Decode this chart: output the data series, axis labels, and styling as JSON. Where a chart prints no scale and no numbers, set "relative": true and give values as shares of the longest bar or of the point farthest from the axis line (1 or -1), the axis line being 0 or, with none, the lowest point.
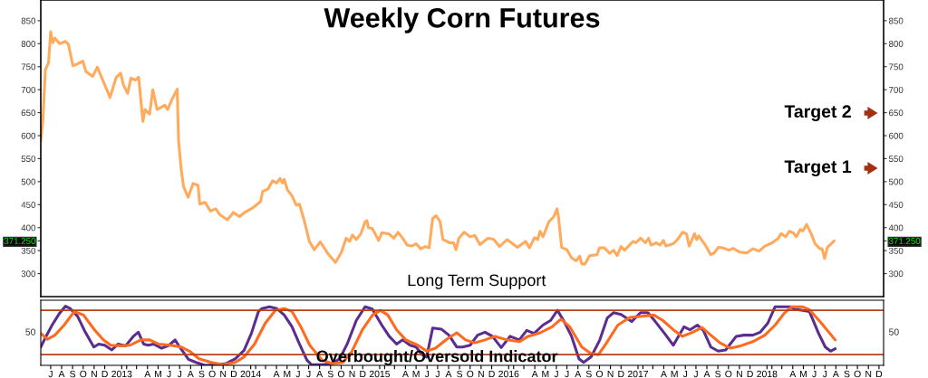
{
  "chart_data": [
    {
      "type": "line",
      "title": "Weekly Corn Futures",
      "xlim": [
        "2012-06-17",
        "2018-12-28"
      ],
      "ylim": [
        250,
        895
      ],
      "yticks": [
        300,
        350,
        {
          "value": 371.25,
          "label": "371.250"
        },
        400,
        450,
        500,
        550,
        600,
        650,
        700,
        750,
        800,
        850
      ],
      "y2lim": [
        250,
        895
      ],
      "y2ticks": [
        300,
        350,
        {
          "value": 371.25,
          "label": "371.250"
        },
        400,
        450,
        500,
        550,
        600,
        650,
        700,
        750,
        800,
        850
      ],
      "tick_labels": "y",
      "annotations": [
        "Long Term Support",
        "Target 2",
        "Target 1"
      ],
      "series": [
        {
          "color": "#ffaa5c",
          "x": [
            "2012-06-17",
            "2012-06-23",
            "2012-06-30",
            "2012-07-09",
            "2012-07-15",
            "2012-07-21",
            "2012-07-27",
            "2012-08-09",
            "2012-08-26",
            "2012-09-03",
            "2012-09-16",
            "2012-09-29",
            "2012-10-14",
            "2012-10-23",
            "2012-11-11",
            "2012-11-24",
            "2012-12-19",
            "2012-12-30",
            "2013-01-16",
            "2013-01-29",
            "2013-02-06",
            "2013-02-18",
            "2013-02-27",
            "2013-03-12",
            "2013-03-21",
            "2013-04-02",
            "2013-04-08",
            "2013-04-21",
            "2013-04-30",
            "2013-05-12",
            "2013-06-03",
            "2013-06-11",
            "2013-06-24",
            "2013-07-08",
            "2013-07-12",
            "2013-07-19",
            "2013-07-26",
            "2013-08-08",
            "2013-08-22",
            "2013-09-05",
            "2013-09-10",
            "2013-09-25",
            "2013-10-10",
            "2013-10-25",
            "2013-11-06",
            "2013-11-27",
            "2013-12-14",
            "2013-12-31",
            "2014-01-13",
            "2014-02-07",
            "2014-03-01",
            "2014-03-07",
            "2014-03-22",
            "2014-04-04",
            "2014-04-15",
            "2014-04-25",
            "2014-05-02",
            "2014-05-07",
            "2014-05-16",
            "2014-05-29",
            "2014-06-10",
            "2014-06-19",
            "2014-07-02",
            "2014-07-17",
            "2014-07-31",
            "2014-08-17",
            "2014-09-07",
            "2014-09-29",
            "2014-10-16",
            "2014-10-29",
            "2014-11-08",
            "2014-11-16",
            "2014-11-27",
            "2014-12-10",
            "2014-12-22",
            "2014-12-27",
            "2014-12-31",
            "2015-01-11",
            "2015-01-19",
            "2015-01-29",
            "2015-02-07",
            "2015-02-28",
            "2015-03-13",
            "2015-03-25",
            "2015-04-07",
            "2015-04-20",
            "2015-05-03",
            "2015-05-15",
            "2015-05-28",
            "2015-06-10",
            "2015-06-21",
            "2015-07-01",
            "2015-07-11",
            "2015-07-22",
            "2015-07-30",
            "2015-08-19",
            "2015-08-29",
            "2015-09-05",
            "2015-09-13",
            "2015-09-28",
            "2015-10-15",
            "2015-10-28",
            "2015-11-12",
            "2015-12-04",
            "2015-12-20",
            "2016-01-06",
            "2016-01-28",
            "2016-02-14",
            "2016-02-26",
            "2016-03-20",
            "2016-03-31",
            "2016-04-14",
            "2016-04-23",
            "2016-04-30",
            "2016-05-08",
            "2016-05-25",
            "2016-06-07",
            "2016-06-17",
            "2016-06-21",
            "2016-06-30",
            "2016-07-15",
            "2016-07-28",
            "2016-08-10",
            "2016-08-20",
            "2016-08-26",
            "2016-09-04",
            "2016-09-17",
            "2016-10-08",
            "2016-10-15",
            "2016-10-29",
            "2016-11-13",
            "2016-11-24",
            "2016-12-04",
            "2016-12-15",
            "2016-12-25",
            "2017-01-18",
            "2017-01-26",
            "2017-02-08",
            "2017-02-22",
            "2017-03-03",
            "2017-03-10",
            "2017-03-25",
            "2017-04-04",
            "2017-04-14",
            "2017-04-21",
            "2017-05-12",
            "2017-05-25",
            "2017-06-07",
            "2017-06-18",
            "2017-06-26",
            "2017-07-11",
            "2017-07-17",
            "2017-07-23",
            "2017-08-09",
            "2017-08-26",
            "2017-09-05",
            "2017-09-16",
            "2017-09-29",
            "2017-10-17",
            "2017-10-28",
            "2017-11-15",
            "2017-12-06",
            "2017-12-23",
            "2018-01-10",
            "2018-01-26",
            "2018-02-16",
            "2018-03-05",
            "2018-03-13",
            "2018-03-26",
            "2018-04-05",
            "2018-04-16",
            "2018-04-25",
            "2018-05-06",
            "2018-05-14",
            "2018-05-24",
            "2018-06-06",
            "2018-06-17",
            "2018-07-01",
            "2018-07-07",
            "2018-07-14",
            "2018-07-22",
            "2018-08-10"
          ],
          "values": [
            588,
            634,
            743,
            759,
            826,
            802,
            812,
            800,
            805,
            799,
            752,
            756,
            762,
            739,
            729,
            749,
            703,
            683,
            726,
            736,
            710,
            692,
            725,
            721,
            727,
            631,
            657,
            647,
            700,
            657,
            666,
            657,
            680,
            701,
            588,
            529,
            489,
            466,
            496,
            492,
            451,
            455,
            436,
            441,
            428,
            417,
            433,
            424,
            432,
            443,
            457,
            479,
            484,
            502,
            497,
            507,
            497,
            505,
            482,
            469,
            449,
            451,
            417,
            370,
            352,
            369,
            344,
            324,
            347,
            377,
            370,
            384,
            374,
            387,
            413,
            415,
            400,
            398,
            387,
            372,
            389,
            386,
            377,
            390,
            377,
            362,
            360,
            365,
            354,
            359,
            356,
            420,
            426,
            413,
            374,
            367,
            367,
            352,
            377,
            390,
            380,
            383,
            363,
            377,
            375,
            359,
            374,
            364,
            357,
            370,
            356,
            378,
            374,
            392,
            380,
            413,
            423,
            441,
            423,
            357,
            352,
            334,
            328,
            338,
            321,
            321,
            339,
            341,
            356,
            356,
            344,
            351,
            339,
            359,
            351,
            370,
            367,
            377,
            367,
            377,
            362,
            367,
            362,
            372,
            360,
            365,
            375,
            390,
            387,
            360,
            387,
            374,
            382,
            364,
            341,
            345,
            357,
            356,
            351,
            355,
            347,
            345,
            354,
            349,
            360,
            367,
            377,
            387,
            380,
            392,
            389,
            380,
            396,
            393,
            407,
            387,
            365,
            354,
            354,
            333,
            357,
            371.25
          ]
        }
      ]
    },
    {
      "type": "line",
      "title": "Overbought/Oversold Indicator",
      "xlim": [
        "2012-06-17",
        "2018-12-28"
      ],
      "relative": true,
      "annotations": [
        "50",
        "50"
      ],
      "xticks": [
        {
          "value": "2012-07-15",
          "label": "J"
        },
        {
          "value": "2012-08-15",
          "label": "A"
        },
        {
          "value": "2012-09-15",
          "label": "S"
        },
        {
          "value": "2012-10-15",
          "label": "O"
        },
        {
          "value": "2012-11-15",
          "label": "N"
        },
        {
          "value": "2012-12-15",
          "label": "D"
        },
        {
          "value": "2013-02-01",
          "label": "2013"
        },
        {
          "value": "2013-02-15",
          "label": null
        },
        {
          "value": "2013-03-15",
          "label": null
        },
        {
          "value": "2013-04-15",
          "label": "A"
        },
        {
          "value": "2013-05-15",
          "label": "M"
        },
        {
          "value": "2013-06-15",
          "label": "J"
        },
        {
          "value": "2013-07-15",
          "label": "J"
        },
        {
          "value": "2013-08-15",
          "label": "A"
        },
        {
          "value": "2013-09-15",
          "label": "S"
        },
        {
          "value": "2013-10-15",
          "label": "O"
        },
        {
          "value": "2013-11-15",
          "label": "N"
        },
        {
          "value": "2013-12-15",
          "label": "D"
        },
        {
          "value": "2014-02-01",
          "label": "2014"
        },
        {
          "value": "2014-02-15",
          "label": null
        },
        {
          "value": "2014-03-15",
          "label": null
        },
        {
          "value": "2014-04-15",
          "label": "A"
        },
        {
          "value": "2014-05-15",
          "label": "M"
        },
        {
          "value": "2014-06-15",
          "label": "J"
        },
        {
          "value": "2014-07-15",
          "label": "J"
        },
        {
          "value": "2014-08-15",
          "label": "A"
        },
        {
          "value": "2014-09-15",
          "label": "S"
        },
        {
          "value": "2014-10-15",
          "label": "O"
        },
        {
          "value": "2014-11-15",
          "label": "N"
        },
        {
          "value": "2014-12-15",
          "label": "D"
        },
        {
          "value": "2015-02-01",
          "label": "2015"
        },
        {
          "value": "2015-02-15",
          "label": null
        },
        {
          "value": "2015-03-15",
          "label": null
        },
        {
          "value": "2015-04-15",
          "label": "A"
        },
        {
          "value": "2015-05-15",
          "label": "M"
        },
        {
          "value": "2015-06-15",
          "label": "J"
        },
        {
          "value": "2015-07-15",
          "label": "J"
        },
        {
          "value": "2015-08-15",
          "label": "A"
        },
        {
          "value": "2015-09-15",
          "label": "S"
        },
        {
          "value": "2015-10-15",
          "label": "O"
        },
        {
          "value": "2015-11-15",
          "label": "N"
        },
        {
          "value": "2015-12-15",
          "label": "D"
        },
        {
          "value": "2016-02-01",
          "label": "2016"
        },
        {
          "value": "2016-02-15",
          "label": null
        },
        {
          "value": "2016-03-15",
          "label": null
        },
        {
          "value": "2016-04-15",
          "label": "A"
        },
        {
          "value": "2016-05-15",
          "label": "M"
        },
        {
          "value": "2016-06-15",
          "label": "J"
        },
        {
          "value": "2016-07-15",
          "label": "J"
        },
        {
          "value": "2016-08-15",
          "label": "A"
        },
        {
          "value": "2016-09-15",
          "label": "S"
        },
        {
          "value": "2016-10-15",
          "label": "O"
        },
        {
          "value": "2016-11-15",
          "label": "N"
        },
        {
          "value": "2016-12-15",
          "label": "D"
        },
        {
          "value": "2017-02-01",
          "label": "2017"
        },
        {
          "value": "2017-02-15",
          "label": null
        },
        {
          "value": "2017-03-15",
          "label": null
        },
        {
          "value": "2017-04-15",
          "label": "A"
        },
        {
          "value": "2017-05-15",
          "label": "M"
        },
        {
          "value": "2017-06-15",
          "label": "J"
        },
        {
          "value": "2017-07-15",
          "label": "J"
        },
        {
          "value": "2017-08-15",
          "label": "A"
        },
        {
          "value": "2017-09-15",
          "label": "S"
        },
        {
          "value": "2017-10-15",
          "label": "O"
        },
        {
          "value": "2017-11-15",
          "label": "N"
        },
        {
          "value": "2017-12-15",
          "label": "D"
        },
        {
          "value": "2018-02-01",
          "label": "2018"
        },
        {
          "value": "2018-02-15",
          "label": null
        },
        {
          "value": "2018-03-15",
          "label": null
        },
        {
          "value": "2018-04-15",
          "label": "A"
        },
        {
          "value": "2018-05-15",
          "label": "M"
        },
        {
          "value": "2018-06-15",
          "label": "J"
        },
        {
          "value": "2018-07-15",
          "label": "J"
        },
        {
          "value": "2018-08-15",
          "label": "A"
        },
        {
          "value": "2018-09-15",
          "label": "S"
        },
        {
          "value": "2018-10-15",
          "label": "O"
        },
        {
          "value": "2018-11-15",
          "label": "N"
        },
        {
          "value": "2018-12-15",
          "label": "D"
        }
      ],
      "ref_lines": [
        {
          "axis": "y",
          "value": 0.93,
          "color": "#b5401a"
        },
        {
          "axis": "y",
          "value": 0.18,
          "color": "#b5401a"
        }
      ],
      "series": [
        {
          "color": "#5b2d90",
          "x": [
            "2012-06-17",
            "2012-07-02",
            "2012-07-19",
            "2012-08-09",
            "2012-08-26",
            "2012-09-08",
            "2012-09-29",
            "2012-10-21",
            "2012-11-14",
            "2012-11-28",
            "2012-12-15",
            "2013-01-04",
            "2013-01-22",
            "2013-02-12",
            "2013-03-06",
            "2013-03-20",
            "2013-04-04",
            "2013-04-17",
            "2013-05-02",
            "2013-05-25",
            "2013-06-15",
            "2013-07-02",
            "2013-07-15",
            "2013-08-09",
            "2013-08-30",
            "2013-09-25",
            "2013-10-29",
            "2013-11-23",
            "2013-12-19",
            "2014-01-13",
            "2014-02-03",
            "2014-02-23",
            "2014-03-05",
            "2014-03-26",
            "2014-04-16",
            "2014-05-07",
            "2014-05-29",
            "2014-06-19",
            "2014-07-10",
            "2014-07-23",
            "2014-08-22",
            "2014-09-20",
            "2014-10-11",
            "2014-11-01",
            "2014-11-27",
            "2014-12-22",
            "2015-01-11",
            "2015-02-07",
            "2015-02-28",
            "2015-03-21",
            "2015-04-07",
            "2015-04-28",
            "2015-05-15",
            "2015-06-01",
            "2015-06-14",
            "2015-07-01",
            "2015-07-26",
            "2015-08-16",
            "2015-09-07",
            "2015-09-24",
            "2015-10-15",
            "2015-11-05",
            "2015-11-26",
            "2015-12-17",
            "2016-01-11",
            "2016-02-05",
            "2016-03-02",
            "2016-03-23",
            "2016-04-13",
            "2016-05-08",
            "2016-05-30",
            "2016-06-18",
            "2016-07-07",
            "2016-07-28",
            "2016-08-18",
            "2016-08-31",
            "2016-09-21",
            "2016-10-16",
            "2016-11-06",
            "2016-11-24",
            "2016-12-15",
            "2017-01-14",
            "2017-02-08",
            "2017-03-01",
            "2017-03-22",
            "2017-04-17",
            "2017-05-12",
            "2017-06-11",
            "2017-06-28",
            "2017-07-19",
            "2017-08-05",
            "2017-08-26",
            "2017-09-16",
            "2017-10-07",
            "2017-11-06",
            "2017-11-27",
            "2017-12-23",
            "2018-01-13",
            "2018-02-03",
            "2018-02-24",
            "2018-03-17",
            "2018-04-07",
            "2018-04-20",
            "2018-06-01",
            "2018-06-27",
            "2018-07-16",
            "2018-07-31",
            "2018-08-13"
          ],
          "values": [
            0.31,
            0.49,
            0.68,
            0.88,
            1,
            0.96,
            0.83,
            0.56,
            0.31,
            0.36,
            0.34,
            0.26,
            0.36,
            0.33,
            0.49,
            0.56,
            0.36,
            0.34,
            0.36,
            0.29,
            0.34,
            0.43,
            0.31,
            0.1,
            0.05,
            0,
            0.01,
            0.03,
            0.11,
            0.25,
            0.54,
            0.91,
            0.96,
            0.99,
            0.96,
            0.85,
            0.65,
            0.36,
            0.09,
            0.01,
            0.01,
            0.03,
            0.11,
            0.36,
            0.76,
            0.99,
            0.95,
            0.68,
            0.49,
            0.36,
            0.43,
            0.34,
            0.31,
            0.18,
            0.14,
            0.63,
            0.61,
            0.51,
            0.31,
            0.31,
            0.34,
            0.51,
            0.56,
            0.49,
            0.3,
            0.49,
            0.43,
            0.59,
            0.54,
            0.68,
            0.76,
            0.93,
            0.74,
            0.49,
            0.11,
            0.05,
            0.14,
            0.43,
            0.8,
            0.89,
            0.86,
            0.74,
            0.89,
            0.89,
            0.74,
            0.54,
            0.34,
            0.65,
            0.6,
            0.68,
            0.59,
            0.31,
            0.24,
            0.26,
            0.49,
            0.51,
            0.51,
            0.56,
            0.71,
            0.99,
            0.99,
            0.99,
            0.95,
            0.91,
            0.54,
            0.31,
            0.24,
            0.28
          ]
        },
        {
          "color": "#ff6a1f",
          "x": [
            "2012-06-17",
            "2012-07-06",
            "2012-07-27",
            "2012-08-22",
            "2012-09-20",
            "2012-10-16",
            "2012-11-16",
            "2012-12-11",
            "2013-01-01",
            "2013-01-31",
            "2013-02-25",
            "2013-03-27",
            "2013-04-21",
            "2013-05-16",
            "2013-06-19",
            "2013-07-19",
            "2013-08-14",
            "2013-09-08",
            "2013-10-12",
            "2013-11-15",
            "2013-12-19",
            "2014-01-13",
            "2014-02-12",
            "2014-03-14",
            "2014-04-12",
            "2014-05-07",
            "2014-05-29",
            "2014-06-23",
            "2014-07-18",
            "2014-08-22",
            "2014-09-20",
            "2014-10-20",
            "2014-11-14",
            "2014-12-14",
            "2015-01-12",
            "2015-02-03",
            "2015-02-24",
            "2015-03-21",
            "2015-04-16",
            "2015-05-20",
            "2015-06-14",
            "2015-07-09",
            "2015-08-12",
            "2015-09-07",
            "2015-10-02",
            "2015-10-28",
            "2015-11-26",
            "2015-12-24",
            "2016-01-28",
            "2016-03-02",
            "2016-03-27",
            "2016-04-30",
            "2016-06-03",
            "2016-06-28",
            "2016-07-23",
            "2016-08-26",
            "2016-09-21",
            "2016-10-12",
            "2016-11-02",
            "2016-12-06",
            "2017-01-09",
            "2017-02-12",
            "2017-03-18",
            "2017-04-12",
            "2017-05-12",
            "2017-06-07",
            "2017-07-06",
            "2017-08-01",
            "2017-08-26",
            "2017-09-21",
            "2017-10-20",
            "2017-11-19",
            "2017-12-23",
            "2018-01-26",
            "2018-02-24",
            "2018-03-22",
            "2018-04-12",
            "2018-05-12",
            "2018-06-01",
            "2018-07-01",
            "2018-08-13"
          ],
          "values": [
            0.54,
            0.44,
            0.51,
            0.68,
            0.91,
            0.85,
            0.6,
            0.43,
            0.34,
            0.33,
            0.34,
            0.43,
            0.43,
            0.36,
            0.34,
            0.31,
            0.23,
            0.11,
            0.05,
            0.01,
            0.05,
            0.14,
            0.36,
            0.71,
            0.93,
            0.96,
            0.91,
            0.65,
            0.34,
            0.09,
            0.03,
            0.05,
            0.23,
            0.6,
            0.85,
            0.93,
            0.85,
            0.6,
            0.43,
            0.34,
            0.24,
            0.29,
            0.45,
            0.55,
            0.43,
            0.38,
            0.43,
            0.49,
            0.43,
            0.4,
            0.49,
            0.55,
            0.65,
            0.78,
            0.65,
            0.31,
            0.2,
            0.18,
            0.36,
            0.68,
            0.81,
            0.83,
            0.85,
            0.76,
            0.6,
            0.49,
            0.56,
            0.64,
            0.51,
            0.38,
            0.29,
            0.33,
            0.4,
            0.51,
            0.68,
            0.88,
            0.99,
            0.99,
            0.94,
            0.74,
            0.43
          ]
        }
      ]
    }
  ]
}
